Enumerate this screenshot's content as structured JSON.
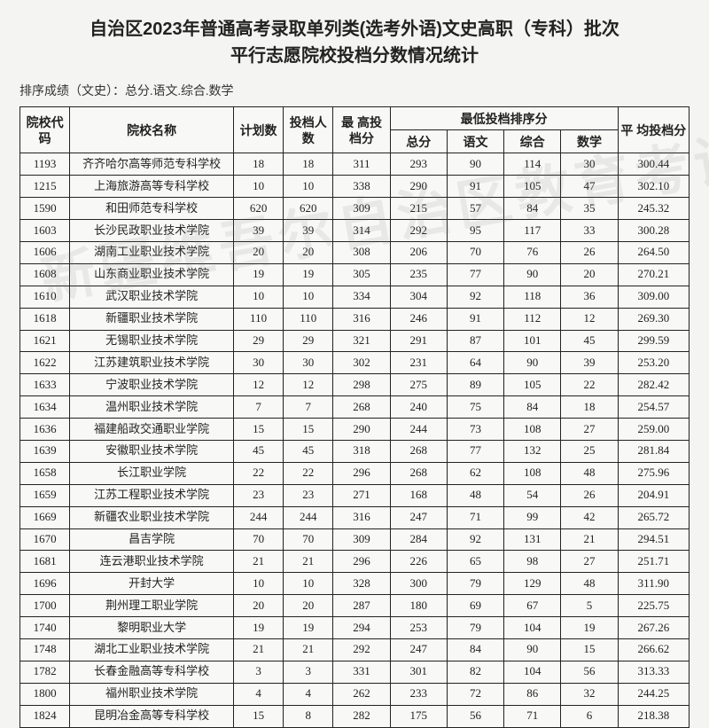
{
  "title_line1": "自治区2023年普通高考录取单列类(选考外语)文史高职（专科）批次",
  "title_line2": "平行志愿院校投档分数情况统计",
  "sort_note": "排序成绩（文史）：总分.语文.综合.数学",
  "watermark": "新疆维吾尔自治区教育考试院",
  "headers": {
    "code": "院校代码",
    "name": "院校名称",
    "plan": "计划数",
    "admitted": "投档人数",
    "max": "最 高投档分",
    "min_group": "最低投档排序分",
    "min_total": "总分",
    "min_chinese": "语文",
    "min_comp": "综合",
    "min_math": "数学",
    "avg": "平 均投档分"
  },
  "rows": [
    {
      "code": "1193",
      "name": "齐齐哈尔高等师范专科学校",
      "plan": "18",
      "adm": "18",
      "max": "311",
      "t": "293",
      "c": "90",
      "z": "114",
      "m": "30",
      "avg": "300.44"
    },
    {
      "code": "1215",
      "name": "上海旅游高等专科学校",
      "plan": "10",
      "adm": "10",
      "max": "338",
      "t": "290",
      "c": "91",
      "z": "105",
      "m": "47",
      "avg": "302.10"
    },
    {
      "code": "1590",
      "name": "和田师范专科学校",
      "plan": "620",
      "adm": "620",
      "max": "309",
      "t": "215",
      "c": "57",
      "z": "84",
      "m": "35",
      "avg": "245.32"
    },
    {
      "code": "1603",
      "name": "长沙民政职业技术学院",
      "plan": "39",
      "adm": "39",
      "max": "314",
      "t": "292",
      "c": "95",
      "z": "117",
      "m": "33",
      "avg": "300.28"
    },
    {
      "code": "1606",
      "name": "湖南工业职业技术学院",
      "plan": "20",
      "adm": "20",
      "max": "308",
      "t": "206",
      "c": "70",
      "z": "76",
      "m": "26",
      "avg": "264.50"
    },
    {
      "code": "1608",
      "name": "山东商业职业技术学院",
      "plan": "19",
      "adm": "19",
      "max": "305",
      "t": "235",
      "c": "77",
      "z": "90",
      "m": "20",
      "avg": "270.21"
    },
    {
      "code": "1610",
      "name": "武汉职业技术学院",
      "plan": "10",
      "adm": "10",
      "max": "334",
      "t": "304",
      "c": "92",
      "z": "118",
      "m": "36",
      "avg": "309.00"
    },
    {
      "code": "1618",
      "name": "新疆职业技术学院",
      "plan": "110",
      "adm": "110",
      "max": "316",
      "t": "246",
      "c": "91",
      "z": "112",
      "m": "12",
      "avg": "269.30"
    },
    {
      "code": "1621",
      "name": "无锡职业技术学院",
      "plan": "29",
      "adm": "29",
      "max": "321",
      "t": "291",
      "c": "87",
      "z": "101",
      "m": "45",
      "avg": "299.59"
    },
    {
      "code": "1622",
      "name": "江苏建筑职业技术学院",
      "plan": "30",
      "adm": "30",
      "max": "302",
      "t": "231",
      "c": "64",
      "z": "90",
      "m": "39",
      "avg": "253.20"
    },
    {
      "code": "1633",
      "name": "宁波职业技术学院",
      "plan": "12",
      "adm": "12",
      "max": "298",
      "t": "275",
      "c": "89",
      "z": "105",
      "m": "22",
      "avg": "282.42"
    },
    {
      "code": "1634",
      "name": "温州职业技术学院",
      "plan": "7",
      "adm": "7",
      "max": "268",
      "t": "240",
      "c": "75",
      "z": "84",
      "m": "18",
      "avg": "254.57"
    },
    {
      "code": "1636",
      "name": "福建船政交通职业学院",
      "plan": "15",
      "adm": "15",
      "max": "290",
      "t": "244",
      "c": "73",
      "z": "108",
      "m": "27",
      "avg": "259.00"
    },
    {
      "code": "1639",
      "name": "安徽职业技术学院",
      "plan": "45",
      "adm": "45",
      "max": "318",
      "t": "268",
      "c": "77",
      "z": "132",
      "m": "25",
      "avg": "281.84"
    },
    {
      "code": "1658",
      "name": "长江职业学院",
      "plan": "22",
      "adm": "22",
      "max": "296",
      "t": "268",
      "c": "62",
      "z": "108",
      "m": "48",
      "avg": "275.96"
    },
    {
      "code": "1659",
      "name": "江苏工程职业技术学院",
      "plan": "23",
      "adm": "23",
      "max": "271",
      "t": "168",
      "c": "48",
      "z": "54",
      "m": "26",
      "avg": "204.91"
    },
    {
      "code": "1669",
      "name": "新疆农业职业技术学院",
      "plan": "244",
      "adm": "244",
      "max": "316",
      "t": "247",
      "c": "71",
      "z": "99",
      "m": "42",
      "avg": "265.72"
    },
    {
      "code": "1670",
      "name": "昌吉学院",
      "plan": "70",
      "adm": "70",
      "max": "309",
      "t": "284",
      "c": "92",
      "z": "131",
      "m": "21",
      "avg": "294.51"
    },
    {
      "code": "1681",
      "name": "连云港职业技术学院",
      "plan": "21",
      "adm": "21",
      "max": "296",
      "t": "226",
      "c": "65",
      "z": "98",
      "m": "27",
      "avg": "251.71"
    },
    {
      "code": "1696",
      "name": "开封大学",
      "plan": "10",
      "adm": "10",
      "max": "328",
      "t": "300",
      "c": "79",
      "z": "129",
      "m": "48",
      "avg": "311.90"
    },
    {
      "code": "1700",
      "name": "荆州理工职业学院",
      "plan": "20",
      "adm": "20",
      "max": "287",
      "t": "180",
      "c": "69",
      "z": "67",
      "m": "5",
      "avg": "225.75"
    },
    {
      "code": "1740",
      "name": "黎明职业大学",
      "plan": "19",
      "adm": "19",
      "max": "294",
      "t": "253",
      "c": "79",
      "z": "104",
      "m": "19",
      "avg": "267.26"
    },
    {
      "code": "1748",
      "name": "湖北工业职业技术学院",
      "plan": "21",
      "adm": "21",
      "max": "292",
      "t": "247",
      "c": "84",
      "z": "90",
      "m": "15",
      "avg": "266.62"
    },
    {
      "code": "1782",
      "name": "长春金融高等专科学校",
      "plan": "3",
      "adm": "3",
      "max": "331",
      "t": "301",
      "c": "82",
      "z": "104",
      "m": "56",
      "avg": "313.33"
    },
    {
      "code": "1800",
      "name": "福州职业技术学院",
      "plan": "4",
      "adm": "4",
      "max": "262",
      "t": "233",
      "c": "72",
      "z": "86",
      "m": "32",
      "avg": "244.25"
    },
    {
      "code": "1824",
      "name": "昆明冶金高等专科学校",
      "plan": "15",
      "adm": "8",
      "max": "282",
      "t": "175",
      "c": "56",
      "z": "71",
      "m": "6",
      "avg": "218.38"
    }
  ],
  "style": {
    "page_bg": "#f4f4f2",
    "border_color": "#222222",
    "header_fontsize": 14,
    "cell_fontsize": 13,
    "title_fontsize": 20
  }
}
